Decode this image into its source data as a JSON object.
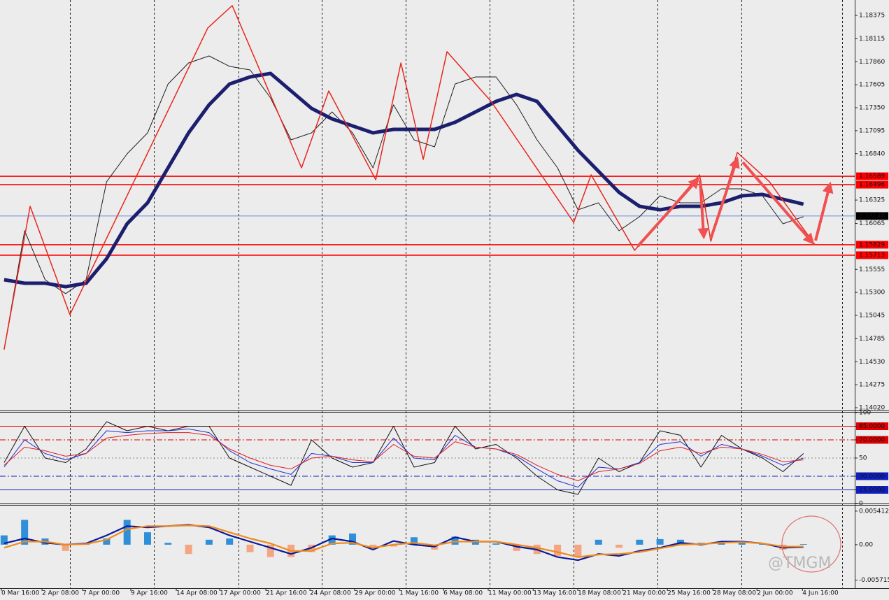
{
  "chart_data": [
    {
      "type": "line",
      "xlim": [
        -0.2,
        41.5
      ],
      "x": [
        0,
        1,
        2,
        3,
        4,
        5,
        6,
        7,
        8,
        9,
        10,
        11,
        12,
        13,
        14,
        15,
        16,
        17,
        18,
        19,
        20,
        21,
        22,
        23,
        24,
        25,
        26,
        27,
        28,
        29,
        30,
        31,
        32,
        33,
        34,
        35,
        36,
        37,
        38,
        39
      ],
      "xticks": [
        {
          "value": -0.13,
          "label": "0 Mar 16:00"
        },
        {
          "value": 1.85,
          "label": "2 Apr 08:00"
        },
        {
          "value": 3.83,
          "label": "7 Apr 00:00"
        },
        {
          "value": 6.18,
          "label": "9 Apr 16:00"
        },
        {
          "value": 8.4,
          "label": "14 Apr 08:00"
        },
        {
          "value": 10.52,
          "label": "17 Apr 00:00"
        },
        {
          "value": 12.77,
          "label": "21 Apr 16:00"
        },
        {
          "value": 14.92,
          "label": "24 Apr 08:00"
        },
        {
          "value": 17.1,
          "label": "29 Apr 00:00"
        },
        {
          "value": 19.29,
          "label": "1 May 16:00"
        },
        {
          "value": 21.44,
          "label": "6 May 08:00"
        },
        {
          "value": 23.62,
          "label": "11 May 00:00"
        },
        {
          "value": 25.81,
          "label": "13 May 16:00"
        },
        {
          "value": 27.99,
          "label": "18 May 08:00"
        },
        {
          "value": 30.18,
          "label": "21 May 00:00"
        },
        {
          "value": 32.36,
          "label": "25 May 16:00"
        },
        {
          "value": 34.58,
          "label": "28 May 08:00"
        },
        {
          "value": 36.73,
          "label": "2 Jun 00:00"
        },
        {
          "value": 38.95,
          "label": "4 Jun 16:00"
        }
      ],
      "ylim": [
        1.13989,
        1.18546
      ],
      "yticks": [
        1.18375,
        1.18115,
        {
          "value": 1.1786,
          "label": "1.17860"
        },
        1.17605,
        {
          "value": 1.1735,
          "label": "1.17350"
        },
        1.17095,
        {
          "value": 1.1684,
          "label": "1.16840"
        },
        1.16325,
        1.16065,
        1.15555,
        {
          "value": 1.153,
          "label": "1.15300"
        },
        1.15045,
        1.14785,
        {
          "value": 1.1453,
          "label": "1.14530"
        },
        1.14275,
        {
          "value": 1.1402,
          "label": "1.14020"
        }
      ],
      "levels": [
        1.16589,
        1.16496,
        1.16148,
        1.15829,
        1.15713
      ],
      "level_colors": [
        "#ff0000",
        "#ff0000",
        "#3a6fd8",
        "#ff0000",
        "#ff0000"
      ],
      "series": [
        {
          "color": "#202020",
          "values": [
            1.14665,
            1.15984,
            1.15441,
            1.15286,
            1.15441,
            1.16528,
            1.16838,
            1.17071,
            1.17614,
            1.17847,
            1.17925,
            1.17809,
            1.1777,
            1.17459,
            1.16993,
            1.17071,
            1.17304,
            1.17071,
            1.16683,
            1.17382,
            1.16993,
            1.16916,
            1.17614,
            1.17692,
            1.17692,
            1.17382,
            1.16993,
            1.16683,
            1.16217,
            1.16295,
            1.15984,
            1.1614,
            1.16372,
            1.16295,
            1.16295,
            1.1645,
            1.1645,
            1.16372,
            1.16062,
            1.1614
          ]
        },
        {
          "color": "#1c1f6e",
          "values": [
            1.15441,
            1.15402,
            1.15402,
            1.15363,
            1.15402,
            1.15674,
            1.16062,
            1.16295,
            1.16683,
            1.17071,
            1.17382,
            1.17614,
            1.17692,
            1.17731,
            1.17537,
            1.17343,
            1.17226,
            1.17149,
            1.17071,
            1.1711,
            1.1711,
            1.1711,
            1.17188,
            1.17304,
            1.1742,
            1.17498,
            1.1742,
            1.17149,
            1.16877,
            1.16644,
            1.16411,
            1.16256,
            1.16217,
            1.16256,
            1.16256,
            1.16295,
            1.16372,
            1.16388,
            1.16334,
            1.16279
          ]
        },
        {
          "color": "#e8261e",
          "x": [
            0,
            1.27,
            3.21,
            9.94,
            11.13,
            14.51,
            15.84,
            18.13,
            19.36,
            20.45,
            21.61,
            23.76,
            27.79,
            28.64,
            30.76,
            33.93,
            34.48,
            35.77,
            37.34,
            39.56
          ],
          "values": [
            1.14665,
            1.16256,
            1.15053,
            1.18236,
            1.18484,
            1.16683,
            1.17537,
            1.16551,
            1.17847,
            1.16776,
            1.17972,
            1.1742,
            1.16077,
            1.16605,
            1.15767,
            1.16605,
            1.15868,
            1.16854,
            1.16528,
            1.15829
          ]
        }
      ]
    },
    {
      "type": "line",
      "xlim": [
        -0.2,
        41.5
      ],
      "ylim": [
        0,
        100
      ],
      "yticks": [
        100,
        {
          "value": 85,
          "label": "85.0000"
        },
        {
          "value": 70,
          "label": "70.0000"
        },
        50,
        {
          "value": 30,
          "label": "30.0000"
        },
        {
          "value": 15,
          "label": "15.0000"
        },
        0
      ],
      "tick_colors": [
        null,
        "#e00000",
        "#e00000",
        "#888888",
        "#1020c0",
        "#1020c0",
        null
      ],
      "series": [
        {
          "color": "#111111",
          "values": [
            45,
            85,
            50,
            45,
            60,
            90,
            80,
            85,
            80,
            85,
            85,
            50,
            40,
            30,
            20,
            70,
            50,
            40,
            45,
            85,
            40,
            45,
            85,
            60,
            65,
            50,
            30,
            15,
            10,
            50,
            35,
            45,
            80,
            75,
            40,
            75,
            60,
            50,
            35,
            55
          ]
        },
        {
          "color": "#2030d0",
          "values": [
            40,
            70,
            55,
            48,
            55,
            80,
            78,
            80,
            80,
            82,
            78,
            58,
            45,
            38,
            32,
            55,
            52,
            45,
            45,
            72,
            50,
            48,
            75,
            62,
            60,
            52,
            38,
            25,
            18,
            40,
            38,
            45,
            65,
            68,
            52,
            65,
            60,
            52,
            42,
            50
          ]
        },
        {
          "color": "#e02020",
          "values": [
            42,
            62,
            58,
            52,
            55,
            72,
            75,
            77,
            78,
            78,
            75,
            60,
            50,
            42,
            38,
            50,
            52,
            48,
            46,
            65,
            52,
            50,
            68,
            62,
            60,
            54,
            42,
            32,
            25,
            35,
            38,
            44,
            58,
            62,
            55,
            62,
            60,
            54,
            46,
            48
          ]
        }
      ]
    },
    {
      "type": "bar",
      "xlim": [
        -0.2,
        41.5
      ],
      "ylim": [
        -0.007,
        0.0063
      ],
      "yticks": [
        0.0054121,
        {
          "value": 0,
          "label": "0.00"
        },
        -0.0057155
      ],
      "color": "#2f8fd8",
      "negative_color": "#f4a582",
      "values": [
        0.0015,
        0.004,
        0.001,
        -0.001,
        0.0002,
        0.001,
        0.004,
        0.002,
        0.0003,
        -0.0015,
        0.0008,
        0.001,
        -0.0012,
        -0.002,
        -0.002,
        -0.0012,
        0.0015,
        0.0018,
        -0.0005,
        -0.0003,
        0.0012,
        -0.0008,
        0.0013,
        0.0008,
        0.0002,
        -0.001,
        -0.0015,
        -0.0018,
        -0.002,
        0.0008,
        -0.0005,
        0.0008,
        0.0009,
        0.0008,
        0.0003,
        0.0003,
        0.0004,
        0.0002,
        -0.0008,
        0.0001
      ],
      "series": [
        {
          "color": "#0a1a9a",
          "values": [
            0.0002,
            0.001,
            0.0003,
            0,
            0.0002,
            0.0015,
            0.003,
            0.0028,
            0.003,
            0.0032,
            0.0028,
            0.0015,
            0.0005,
            -0.0005,
            -0.0015,
            -0.0005,
            0.001,
            0.0005,
            -0.0008,
            0.0006,
            0,
            -0.0003,
            0.0012,
            0.0005,
            0.0005,
            -0.0003,
            -0.0008,
            -0.002,
            -0.0025,
            -0.0015,
            -0.0018,
            -0.001,
            -0.0005,
            0.0003,
            0,
            0.0005,
            0.0005,
            0.0002,
            -0.0005,
            -0.0004
          ]
        },
        {
          "color": "#f08a1c",
          "values": [
            -0.0005,
            0.0005,
            0.0005,
            0,
            0.0001,
            0.0008,
            0.0025,
            0.003,
            0.003,
            0.0031,
            0.003,
            0.002,
            0.001,
            0.0002,
            -0.001,
            -0.001,
            0.0002,
            0.0003,
            -0.0005,
            0,
            0.0003,
            -0.0001,
            0.0005,
            0.0005,
            0.0005,
            0,
            -0.0005,
            -0.0012,
            -0.002,
            -0.0016,
            -0.0015,
            -0.0012,
            -0.0006,
            0,
            0.0001,
            0.0003,
            0.0004,
            0.0002,
            -0.0003,
            -0.0003
          ]
        }
      ]
    }
  ],
  "watermark": "@TMGM"
}
